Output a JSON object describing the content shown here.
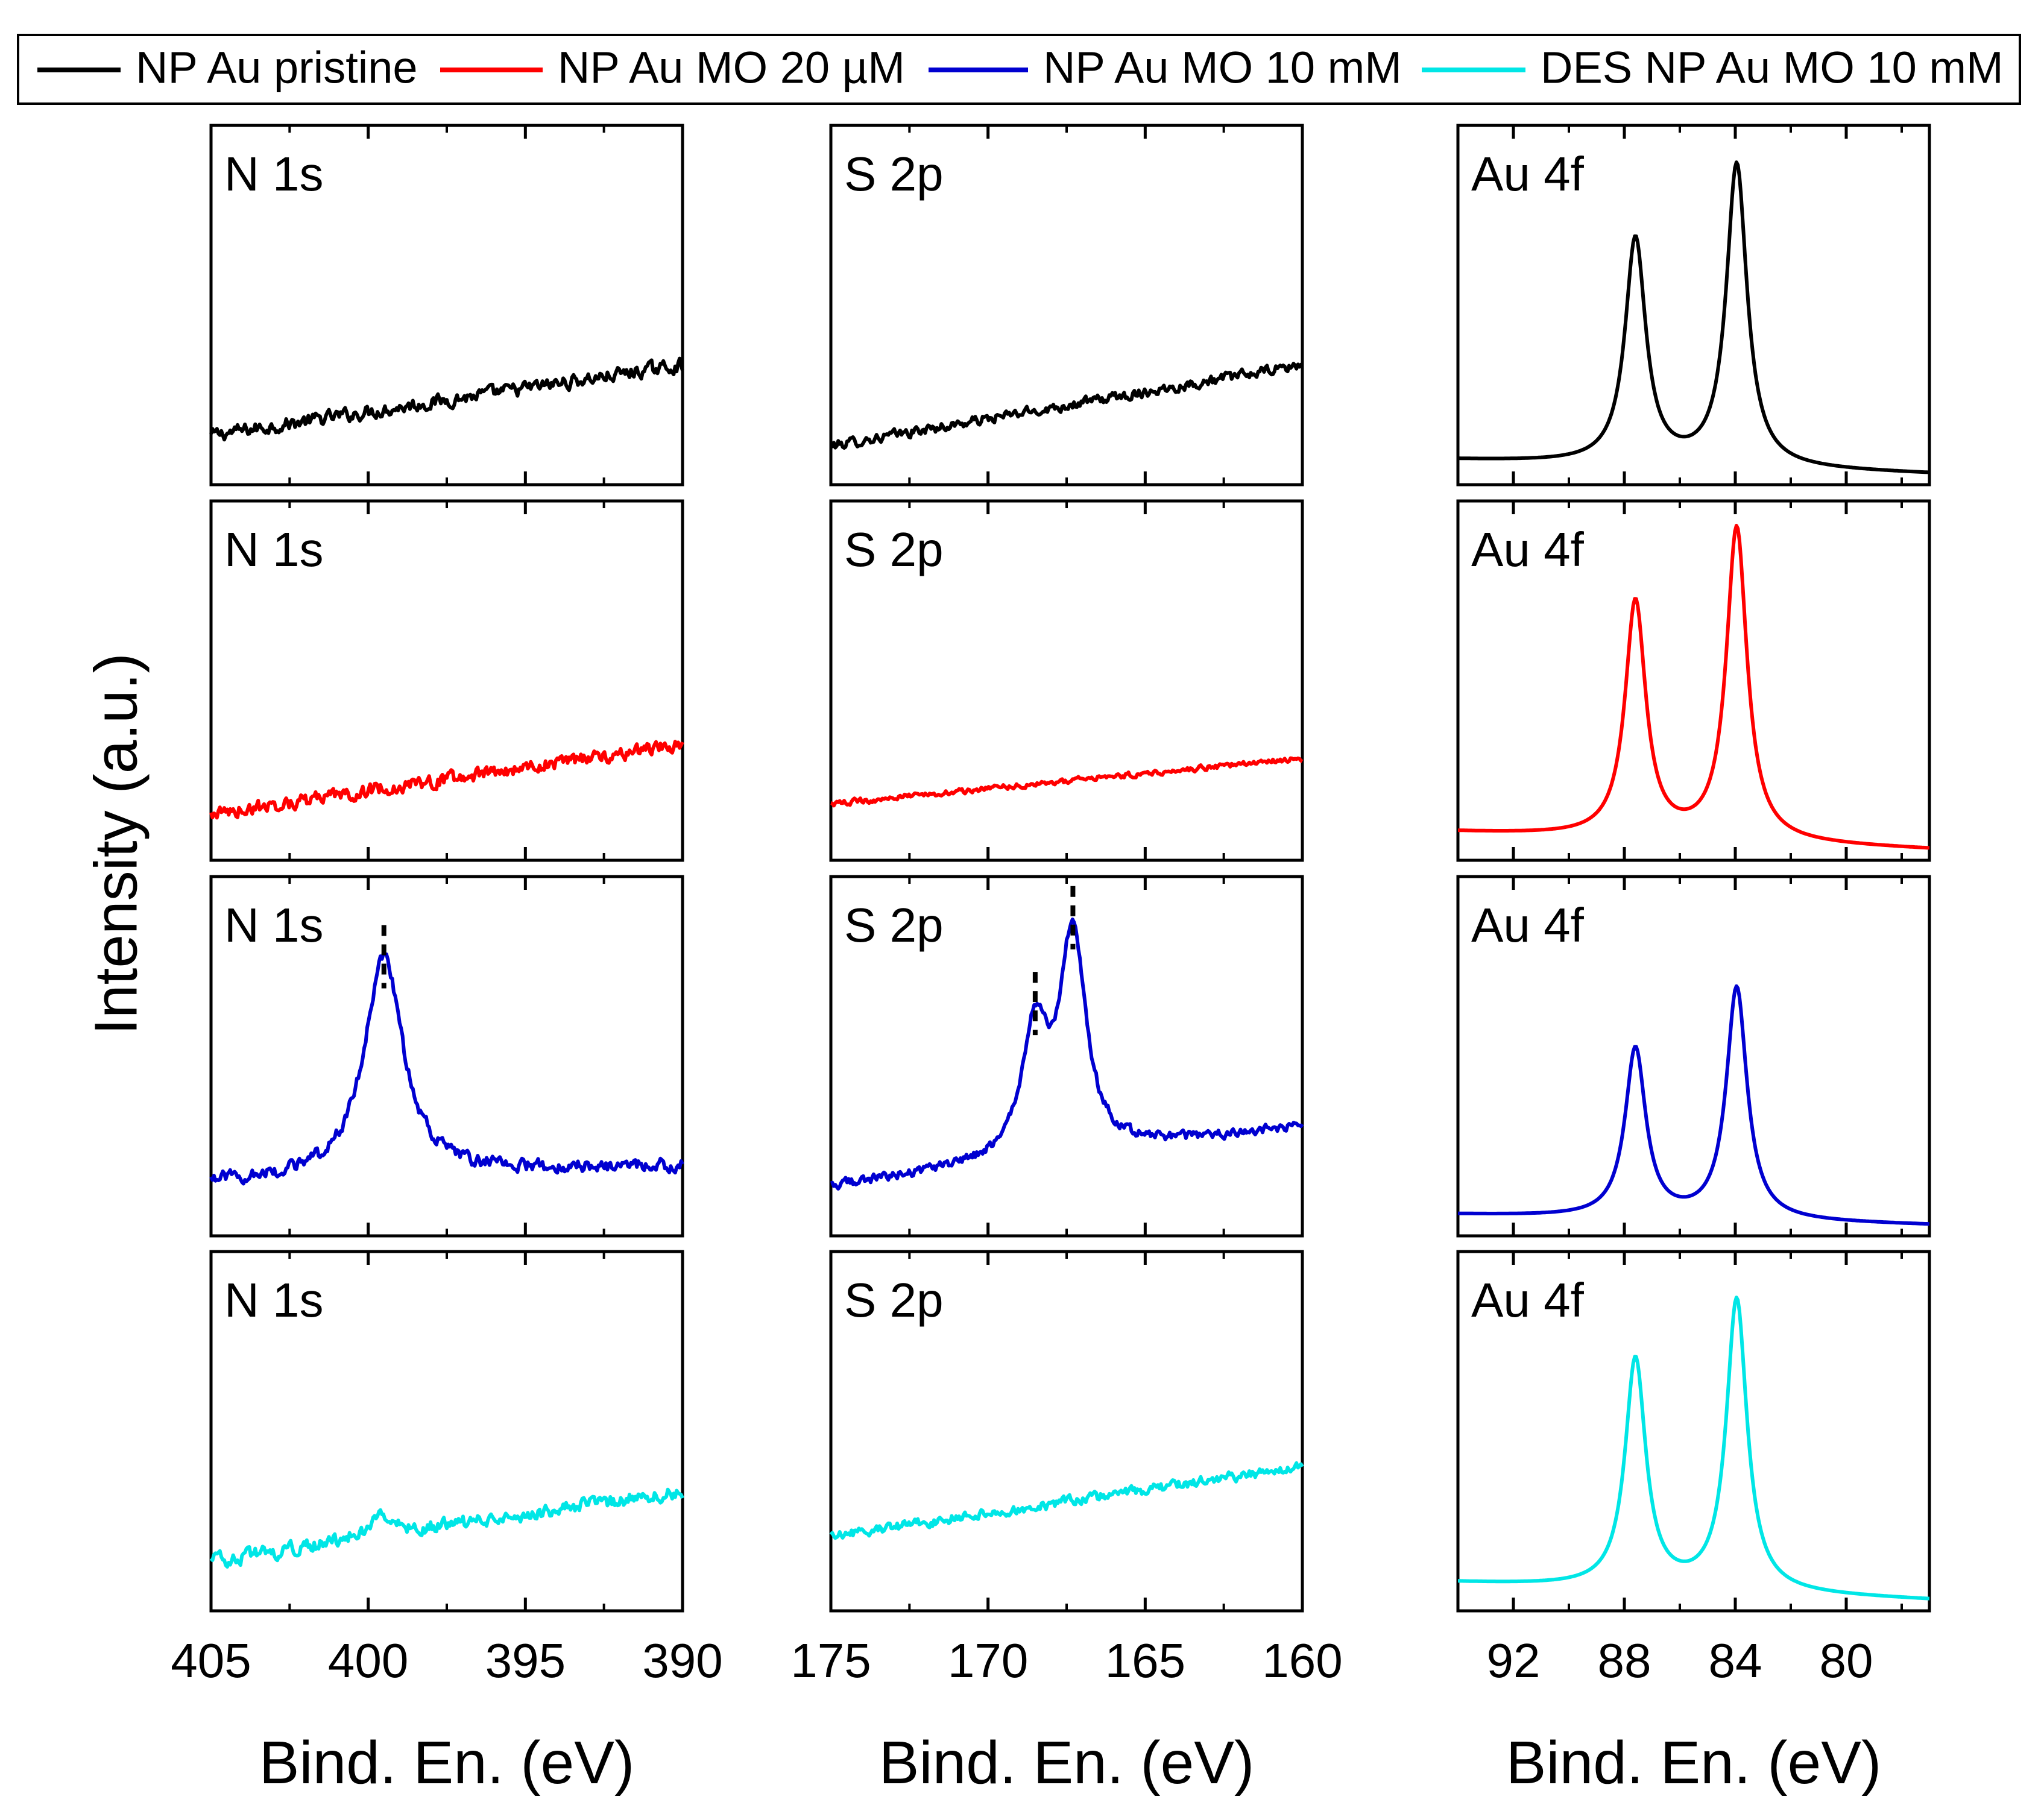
{
  "chart_data": {
    "type": "line",
    "ylabel": "Intensity (a.u.)",
    "legend": {
      "placement": "top",
      "entries": [
        {
          "name": "NP Au pristine",
          "color": "#000000"
        },
        {
          "name": "NP Au MO 20 µM",
          "color": "#ff0000"
        },
        {
          "name": "NP Au MO 10 mM",
          "color": "#0000d0"
        },
        {
          "name": "DES NP Au MO 10 mM",
          "color": "#00e6e6"
        }
      ]
    },
    "columns": [
      {
        "region": "N 1s",
        "xlabel": "Bind. En. (eV)",
        "xlim": [
          405,
          390
        ],
        "ticks": [
          405,
          400,
          395,
          390
        ],
        "tick_labels": [
          "405",
          "400",
          "395",
          "390"
        ],
        "minor_step": 2.5,
        "series": [
          {
            "name": "NP Au pristine",
            "baseline": [
              0.13,
              0.33
            ],
            "noise": 0.03,
            "peaks": []
          },
          {
            "name": "NP Au MO 20 µM",
            "baseline": [
              0.12,
              0.32
            ],
            "noise": 0.03,
            "peaks": []
          },
          {
            "name": "NP Au MO 10 mM",
            "baseline": [
              0.14,
              0.19
            ],
            "noise": 0.028,
            "peaks": [
              {
                "center": 399.5,
                "fwhm": 1.5,
                "height": 0.62
              }
            ],
            "markers": [
              399.5
            ]
          },
          {
            "name": "DES NP Au MO 10 mM",
            "baseline": [
              0.13,
              0.33
            ],
            "noise": 0.03,
            "peaks": [
              {
                "center": 399.6,
                "fwhm": 1.0,
                "height": 0.06
              }
            ]
          }
        ]
      },
      {
        "region": "S 2p",
        "xlabel": "Bind. En. (eV)",
        "xlim": [
          175,
          160
        ],
        "ticks": [
          175,
          170,
          165,
          160
        ],
        "tick_labels": [
          "175",
          "170",
          "165",
          "160"
        ],
        "minor_step": 2.5,
        "series": [
          {
            "name": "NP Au pristine",
            "baseline": [
              0.1,
              0.33
            ],
            "noise": 0.022,
            "peaks": []
          },
          {
            "name": "NP Au MO 20 µM",
            "baseline": [
              0.15,
              0.28
            ],
            "noise": 0.012,
            "peaks": []
          },
          {
            "name": "NP Au MO 10 mM",
            "baseline": [
              0.13,
              0.3
            ],
            "noise": 0.02,
            "peaks": [
              {
                "center": 168.5,
                "fwhm": 1.0,
                "height": 0.35
              },
              {
                "center": 167.3,
                "fwhm": 1.0,
                "height": 0.62
              }
            ],
            "markers": [
              168.5,
              167.3
            ]
          },
          {
            "name": "DES NP Au MO 10 mM",
            "baseline": [
              0.2,
              0.4
            ],
            "noise": 0.022,
            "peaks": []
          }
        ]
      },
      {
        "region": "Au 4f",
        "xlabel": "Bind. En. (eV)",
        "xlim": [
          94,
          77
        ],
        "ticks": [
          92,
          88,
          84,
          80
        ],
        "tick_labels": [
          "92",
          "88",
          "84",
          "80"
        ],
        "minor_step": 2,
        "series": [
          {
            "name": "NP Au pristine",
            "baseline": [
              0.06,
              0.02
            ],
            "noise": 0.0,
            "peaks": [
              {
                "center": 87.6,
                "fwhm": 0.9,
                "height": 0.64
              },
              {
                "center": 83.95,
                "fwhm": 0.9,
                "height": 0.86
              }
            ]
          },
          {
            "name": "NP Au MO 20 µM",
            "baseline": [
              0.07,
              0.02
            ],
            "noise": 0.0,
            "peaks": [
              {
                "center": 87.6,
                "fwhm": 0.9,
                "height": 0.67
              },
              {
                "center": 83.95,
                "fwhm": 0.9,
                "height": 0.89
              }
            ]
          },
          {
            "name": "NP Au MO 10 mM",
            "baseline": [
              0.05,
              0.02
            ],
            "noise": 0.0,
            "peaks": [
              {
                "center": 87.6,
                "fwhm": 0.9,
                "height": 0.48
              },
              {
                "center": 83.95,
                "fwhm": 0.9,
                "height": 0.66
              }
            ]
          },
          {
            "name": "DES NP Au MO 10 mM",
            "baseline": [
              0.07,
              0.02
            ],
            "noise": 0.0,
            "peaks": [
              {
                "center": 87.6,
                "fwhm": 0.9,
                "height": 0.65
              },
              {
                "center": 83.95,
                "fwhm": 0.9,
                "height": 0.83
              }
            ]
          }
        ]
      }
    ]
  }
}
